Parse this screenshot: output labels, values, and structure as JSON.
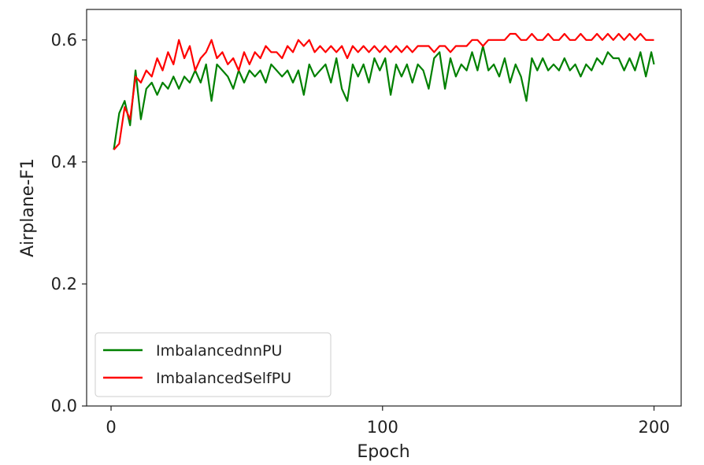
{
  "chart_data": {
    "type": "line",
    "title": "",
    "xlabel": "Epoch",
    "ylabel": "Airplane-F1",
    "xlim": [
      -9,
      210
    ],
    "ylim": [
      0,
      0.65
    ],
    "xticks": [
      0,
      100,
      200
    ],
    "yticks": [
      0.0,
      0.2,
      0.4,
      0.6
    ],
    "xtick_labels": [
      "0",
      "100",
      "200"
    ],
    "ytick_labels": [
      "0.0",
      "0.2",
      "0.4",
      "0.6"
    ],
    "grid": false,
    "legend_position": "lower-left",
    "series": [
      {
        "name": "ImbalancednnPU",
        "color": "#008000",
        "points": [
          [
            1,
            0.42
          ],
          [
            3,
            0.48
          ],
          [
            5,
            0.5
          ],
          [
            7,
            0.46
          ],
          [
            9,
            0.55
          ],
          [
            11,
            0.47
          ],
          [
            13,
            0.52
          ],
          [
            15,
            0.53
          ],
          [
            17,
            0.51
          ],
          [
            19,
            0.53
          ],
          [
            21,
            0.52
          ],
          [
            23,
            0.54
          ],
          [
            25,
            0.52
          ],
          [
            27,
            0.54
          ],
          [
            29,
            0.53
          ],
          [
            31,
            0.55
          ],
          [
            33,
            0.53
          ],
          [
            35,
            0.56
          ],
          [
            37,
            0.5
          ],
          [
            39,
            0.56
          ],
          [
            41,
            0.55
          ],
          [
            43,
            0.54
          ],
          [
            45,
            0.52
          ],
          [
            47,
            0.55
          ],
          [
            49,
            0.53
          ],
          [
            51,
            0.55
          ],
          [
            53,
            0.54
          ],
          [
            55,
            0.55
          ],
          [
            57,
            0.53
          ],
          [
            59,
            0.56
          ],
          [
            61,
            0.55
          ],
          [
            63,
            0.54
          ],
          [
            65,
            0.55
          ],
          [
            67,
            0.53
          ],
          [
            69,
            0.55
          ],
          [
            71,
            0.51
          ],
          [
            73,
            0.56
          ],
          [
            75,
            0.54
          ],
          [
            77,
            0.55
          ],
          [
            79,
            0.56
          ],
          [
            81,
            0.53
          ],
          [
            83,
            0.57
          ],
          [
            85,
            0.52
          ],
          [
            87,
            0.5
          ],
          [
            89,
            0.56
          ],
          [
            91,
            0.54
          ],
          [
            93,
            0.56
          ],
          [
            95,
            0.53
          ],
          [
            97,
            0.57
          ],
          [
            99,
            0.55
          ],
          [
            101,
            0.57
          ],
          [
            103,
            0.51
          ],
          [
            105,
            0.56
          ],
          [
            107,
            0.54
          ],
          [
            109,
            0.56
          ],
          [
            111,
            0.53
          ],
          [
            113,
            0.56
          ],
          [
            115,
            0.55
          ],
          [
            117,
            0.52
          ],
          [
            119,
            0.57
          ],
          [
            121,
            0.58
          ],
          [
            123,
            0.52
          ],
          [
            125,
            0.57
          ],
          [
            127,
            0.54
          ],
          [
            129,
            0.56
          ],
          [
            131,
            0.55
          ],
          [
            133,
            0.58
          ],
          [
            135,
            0.55
          ],
          [
            137,
            0.59
          ],
          [
            139,
            0.55
          ],
          [
            141,
            0.56
          ],
          [
            143,
            0.54
          ],
          [
            145,
            0.57
          ],
          [
            147,
            0.53
          ],
          [
            149,
            0.56
          ],
          [
            151,
            0.54
          ],
          [
            153,
            0.5
          ],
          [
            155,
            0.57
          ],
          [
            157,
            0.55
          ],
          [
            159,
            0.57
          ],
          [
            161,
            0.55
          ],
          [
            163,
            0.56
          ],
          [
            165,
            0.55
          ],
          [
            167,
            0.57
          ],
          [
            169,
            0.55
          ],
          [
            171,
            0.56
          ],
          [
            173,
            0.54
          ],
          [
            175,
            0.56
          ],
          [
            177,
            0.55
          ],
          [
            179,
            0.57
          ],
          [
            181,
            0.56
          ],
          [
            183,
            0.58
          ],
          [
            185,
            0.57
          ],
          [
            187,
            0.57
          ],
          [
            189,
            0.55
          ],
          [
            191,
            0.57
          ],
          [
            193,
            0.55
          ],
          [
            195,
            0.58
          ],
          [
            197,
            0.54
          ],
          [
            199,
            0.58
          ],
          [
            200,
            0.56
          ]
        ]
      },
      {
        "name": "ImbalancedSelfPU",
        "color": "#ff0000",
        "points": [
          [
            1,
            0.42
          ],
          [
            3,
            0.43
          ],
          [
            5,
            0.49
          ],
          [
            7,
            0.47
          ],
          [
            9,
            0.54
          ],
          [
            11,
            0.53
          ],
          [
            13,
            0.55
          ],
          [
            15,
            0.54
          ],
          [
            17,
            0.57
          ],
          [
            19,
            0.55
          ],
          [
            21,
            0.58
          ],
          [
            23,
            0.56
          ],
          [
            25,
            0.6
          ],
          [
            27,
            0.57
          ],
          [
            29,
            0.59
          ],
          [
            31,
            0.55
          ],
          [
            33,
            0.57
          ],
          [
            35,
            0.58
          ],
          [
            37,
            0.6
          ],
          [
            39,
            0.57
          ],
          [
            41,
            0.58
          ],
          [
            43,
            0.56
          ],
          [
            45,
            0.57
          ],
          [
            47,
            0.55
          ],
          [
            49,
            0.58
          ],
          [
            51,
            0.56
          ],
          [
            53,
            0.58
          ],
          [
            55,
            0.57
          ],
          [
            57,
            0.59
          ],
          [
            59,
            0.58
          ],
          [
            61,
            0.58
          ],
          [
            63,
            0.57
          ],
          [
            65,
            0.59
          ],
          [
            67,
            0.58
          ],
          [
            69,
            0.6
          ],
          [
            71,
            0.59
          ],
          [
            73,
            0.6
          ],
          [
            75,
            0.58
          ],
          [
            77,
            0.59
          ],
          [
            79,
            0.58
          ],
          [
            81,
            0.59
          ],
          [
            83,
            0.58
          ],
          [
            85,
            0.59
          ],
          [
            87,
            0.57
          ],
          [
            89,
            0.59
          ],
          [
            91,
            0.58
          ],
          [
            93,
            0.59
          ],
          [
            95,
            0.58
          ],
          [
            97,
            0.59
          ],
          [
            99,
            0.58
          ],
          [
            101,
            0.59
          ],
          [
            103,
            0.58
          ],
          [
            105,
            0.59
          ],
          [
            107,
            0.58
          ],
          [
            109,
            0.59
          ],
          [
            111,
            0.58
          ],
          [
            113,
            0.59
          ],
          [
            115,
            0.59
          ],
          [
            117,
            0.59
          ],
          [
            119,
            0.58
          ],
          [
            121,
            0.59
          ],
          [
            123,
            0.59
          ],
          [
            125,
            0.58
          ],
          [
            127,
            0.59
          ],
          [
            129,
            0.59
          ],
          [
            131,
            0.59
          ],
          [
            133,
            0.6
          ],
          [
            135,
            0.6
          ],
          [
            137,
            0.59
          ],
          [
            139,
            0.6
          ],
          [
            141,
            0.6
          ],
          [
            143,
            0.6
          ],
          [
            145,
            0.6
          ],
          [
            147,
            0.61
          ],
          [
            149,
            0.61
          ],
          [
            151,
            0.6
          ],
          [
            153,
            0.6
          ],
          [
            155,
            0.61
          ],
          [
            157,
            0.6
          ],
          [
            159,
            0.6
          ],
          [
            161,
            0.61
          ],
          [
            163,
            0.6
          ],
          [
            165,
            0.6
          ],
          [
            167,
            0.61
          ],
          [
            169,
            0.6
          ],
          [
            171,
            0.6
          ],
          [
            173,
            0.61
          ],
          [
            175,
            0.6
          ],
          [
            177,
            0.6
          ],
          [
            179,
            0.61
          ],
          [
            181,
            0.6
          ],
          [
            183,
            0.61
          ],
          [
            185,
            0.6
          ],
          [
            187,
            0.61
          ],
          [
            189,
            0.6
          ],
          [
            191,
            0.61
          ],
          [
            193,
            0.6
          ],
          [
            195,
            0.61
          ],
          [
            197,
            0.6
          ],
          [
            199,
            0.6
          ],
          [
            200,
            0.6
          ]
        ]
      }
    ]
  }
}
